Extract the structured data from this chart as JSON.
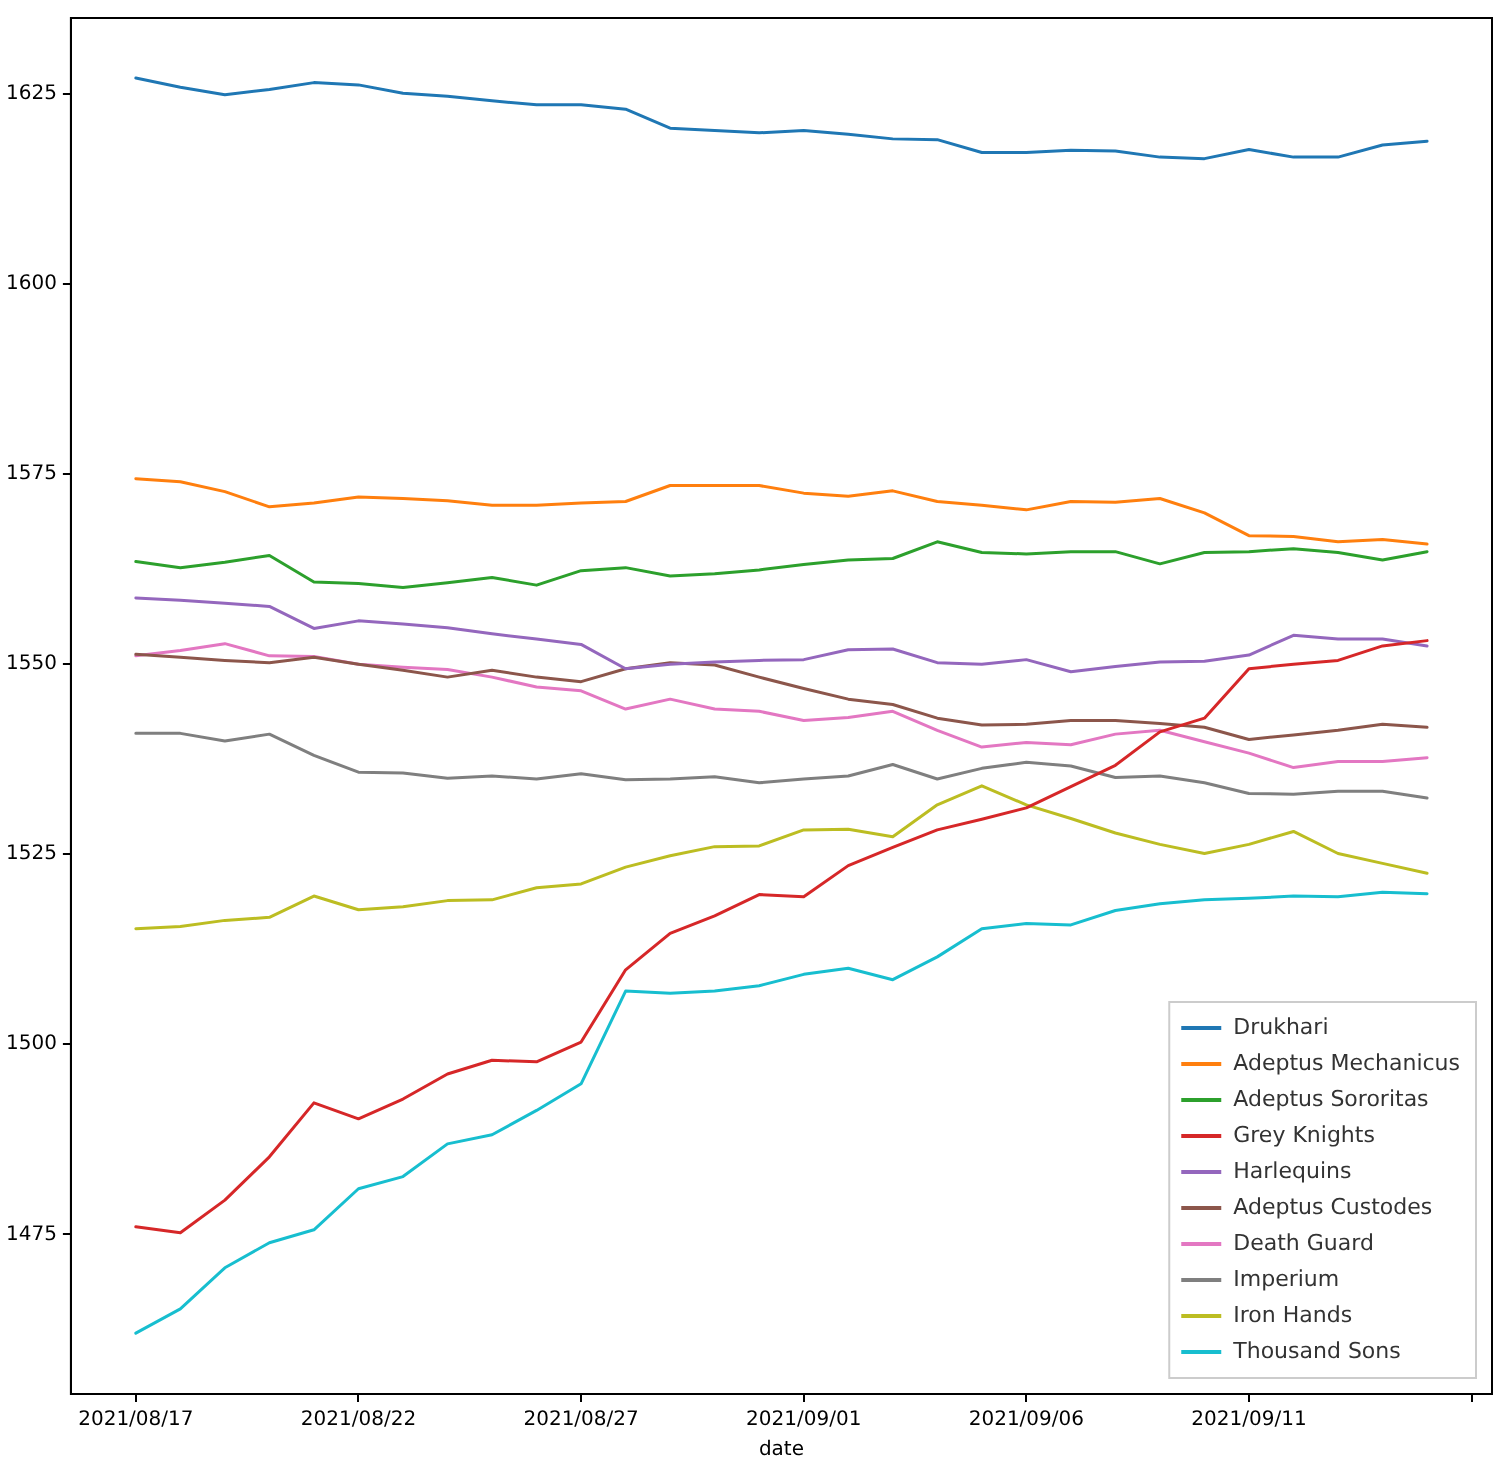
{
  "chart_data": {
    "type": "line",
    "xlabel": "date",
    "x": [
      "2021-08-17",
      "2021-08-18",
      "2021-08-19",
      "2021-08-20",
      "2021-08-21",
      "2021-08-22",
      "2021-08-23",
      "2021-08-24",
      "2021-08-25",
      "2021-08-26",
      "2021-08-27",
      "2021-08-28",
      "2021-08-29",
      "2021-08-30",
      "2021-08-31",
      "2021-09-01",
      "2021-09-02",
      "2021-09-03",
      "2021-09-04",
      "2021-09-05",
      "2021-09-06",
      "2021-09-07",
      "2021-09-08",
      "2021-09-09",
      "2021-09-10",
      "2021-09-11",
      "2021-09-12",
      "2021-09-13",
      "2021-09-14",
      "2021-09-15"
    ],
    "xlim": [
      "2021-08-15T13:00",
      "2021-09-16T11:00"
    ],
    "xticks": [
      {
        "value": "2021-08-17",
        "label": "2021/08/17"
      },
      {
        "value": "2021-08-22",
        "label": "2021/08/22"
      },
      {
        "value": "2021-08-27",
        "label": "2021/08/27"
      },
      {
        "value": "2021-09-01",
        "label": "2021/09/01"
      },
      {
        "value": "2021-09-06",
        "label": "2021/09/06"
      },
      {
        "value": "2021-09-11",
        "label": "2021/09/11"
      },
      {
        "value": "2021-09-16",
        "label": null
      }
    ],
    "ylim": [
      1454,
      1635
    ],
    "yticks": [
      1475,
      1500,
      1525,
      1550,
      1575,
      1600,
      1625
    ],
    "grid": false,
    "legend": "bottom right",
    "marker": "none",
    "line_style": "solid",
    "series": [
      {
        "name": "Drukhari",
        "color": "#1f77b4",
        "values": [
          1627.1,
          1625.9,
          1624.9,
          1625.6,
          1626.5,
          1626.2,
          1625.1,
          1624.7,
          1624.1,
          1623.6,
          1623.6,
          1623.0,
          1620.5,
          1620.2,
          1619.9,
          1620.2,
          1619.7,
          1619.1,
          1619.0,
          1617.3,
          1617.3,
          1617.6,
          1617.5,
          1616.7,
          1616.5,
          1617.7,
          1616.7,
          1616.7,
          1618.3,
          1618.8
        ]
      },
      {
        "name": "Adeptus Mechanicus",
        "color": "#ff7f0e",
        "values": [
          1574.4,
          1574.0,
          1572.7,
          1570.7,
          1571.2,
          1572.0,
          1571.8,
          1571.5,
          1570.9,
          1570.9,
          1571.2,
          1571.4,
          1573.5,
          1573.5,
          1573.5,
          1572.5,
          1572.1,
          1572.8,
          1571.4,
          1570.9,
          1570.3,
          1571.4,
          1571.3,
          1571.8,
          1569.9,
          1566.9,
          1566.8,
          1566.1,
          1566.4,
          1565.8
        ]
      },
      {
        "name": "Adeptus Sororitas",
        "color": "#2ca02c",
        "values": [
          1563.5,
          1562.7,
          1563.4,
          1564.3,
          1560.8,
          1560.6,
          1560.1,
          1560.7,
          1561.4,
          1560.4,
          1562.3,
          1562.7,
          1561.6,
          1561.9,
          1562.4,
          1563.1,
          1563.7,
          1563.9,
          1566.1,
          1564.7,
          1564.5,
          1564.8,
          1564.8,
          1563.2,
          1564.7,
          1564.8,
          1565.2,
          1564.7,
          1563.7,
          1564.8
        ]
      },
      {
        "name": "Grey Knights",
        "color": "#d62728",
        "values": [
          1476.0,
          1475.2,
          1479.5,
          1485.2,
          1492.3,
          1490.2,
          1492.8,
          1496.1,
          1497.9,
          1497.7,
          1500.3,
          1509.8,
          1514.6,
          1516.9,
          1519.7,
          1519.4,
          1523.5,
          1525.9,
          1528.2,
          1529.6,
          1531.1,
          1533.9,
          1536.7,
          1541.1,
          1542.9,
          1549.4,
          1550.0,
          1550.5,
          1552.4,
          1553.1
        ]
      },
      {
        "name": "Harlequins",
        "color": "#9467bd",
        "values": [
          1558.7,
          1558.4,
          1558.0,
          1557.6,
          1554.7,
          1555.7,
          1555.3,
          1554.8,
          1554.0,
          1553.3,
          1552.6,
          1549.4,
          1550.0,
          1550.3,
          1550.5,
          1550.6,
          1551.9,
          1552.0,
          1550.2,
          1550.0,
          1550.6,
          1549.0,
          1549.7,
          1550.3,
          1550.4,
          1551.2,
          1553.8,
          1553.3,
          1553.3,
          1552.4
        ]
      },
      {
        "name": "Adeptus Custodes",
        "color": "#8c564b",
        "values": [
          1551.3,
          1550.9,
          1550.5,
          1550.2,
          1550.9,
          1550.0,
          1549.2,
          1548.3,
          1549.2,
          1548.3,
          1547.7,
          1549.4,
          1550.2,
          1549.9,
          1548.3,
          1546.8,
          1545.4,
          1544.7,
          1542.9,
          1542.0,
          1542.1,
          1542.6,
          1542.6,
          1542.2,
          1541.7,
          1540.1,
          1540.7,
          1541.3,
          1542.1,
          1541.7
        ]
      },
      {
        "name": "Death Guard",
        "color": "#e377c2",
        "values": [
          1551.1,
          1551.8,
          1552.7,
          1551.1,
          1551.0,
          1550.0,
          1549.6,
          1549.3,
          1548.3,
          1547.0,
          1546.5,
          1544.1,
          1545.4,
          1544.1,
          1543.8,
          1542.6,
          1543.0,
          1543.8,
          1541.3,
          1539.1,
          1539.7,
          1539.4,
          1540.8,
          1541.3,
          1539.8,
          1538.3,
          1536.4,
          1537.2,
          1537.2,
          1537.7
        ]
      },
      {
        "name": "Imperium",
        "color": "#7f7f7f",
        "values": [
          1540.9,
          1540.9,
          1539.9,
          1540.8,
          1538.0,
          1535.8,
          1535.7,
          1535.0,
          1535.3,
          1534.9,
          1535.6,
          1534.8,
          1534.9,
          1535.2,
          1534.4,
          1534.9,
          1535.3,
          1536.8,
          1534.9,
          1536.3,
          1537.1,
          1536.6,
          1535.1,
          1535.3,
          1534.4,
          1533.0,
          1532.9,
          1533.3,
          1533.3,
          1532.4
        ]
      },
      {
        "name": "Iron Hands",
        "color": "#bcbd22",
        "values": [
          1515.2,
          1515.5,
          1516.3,
          1516.7,
          1519.5,
          1517.7,
          1518.1,
          1518.9,
          1519.0,
          1520.6,
          1521.1,
          1523.3,
          1524.8,
          1526.0,
          1526.1,
          1528.2,
          1528.3,
          1527.3,
          1531.5,
          1534.0,
          1531.5,
          1529.7,
          1527.8,
          1526.3,
          1525.1,
          1526.3,
          1528.0,
          1525.1,
          1523.8,
          1522.5
        ]
      },
      {
        "name": "Thousand Sons",
        "color": "#17becf",
        "values": [
          1462.0,
          1465.2,
          1470.6,
          1473.9,
          1475.6,
          1481.0,
          1482.6,
          1486.9,
          1488.1,
          1491.3,
          1494.8,
          1507.0,
          1506.7,
          1507.0,
          1507.7,
          1509.2,
          1510.0,
          1508.5,
          1511.5,
          1515.2,
          1515.9,
          1515.7,
          1517.6,
          1518.5,
          1519.0,
          1519.2,
          1519.5,
          1519.4,
          1520.0,
          1519.8
        ]
      }
    ]
  }
}
